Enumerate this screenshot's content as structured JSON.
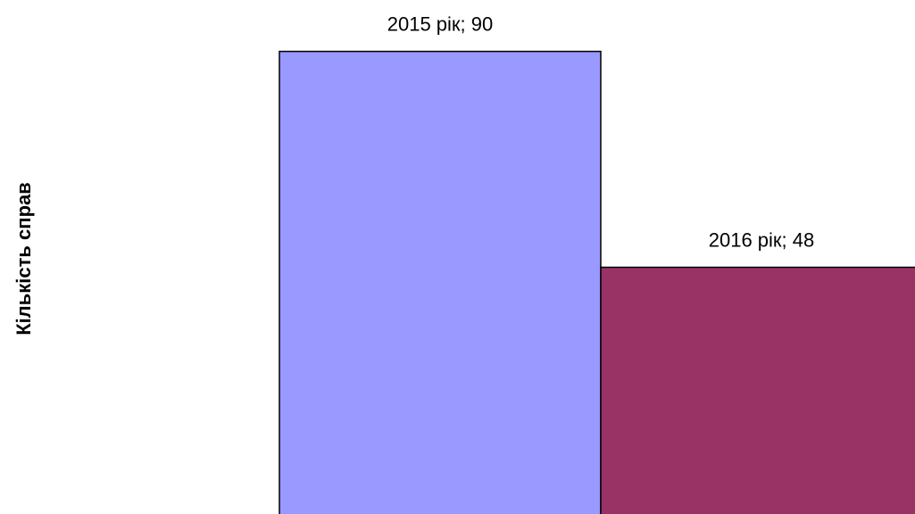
{
  "chart_data": {
    "type": "bar",
    "ylabel": "Кількість справ",
    "values": [
      90,
      48
    ],
    "value_labels": [
      "2015 рік; 90",
      "2016 рік; 48"
    ],
    "colors": [
      "#9999ff",
      "#993366"
    ],
    "ylim": [
      0,
      100
    ]
  }
}
